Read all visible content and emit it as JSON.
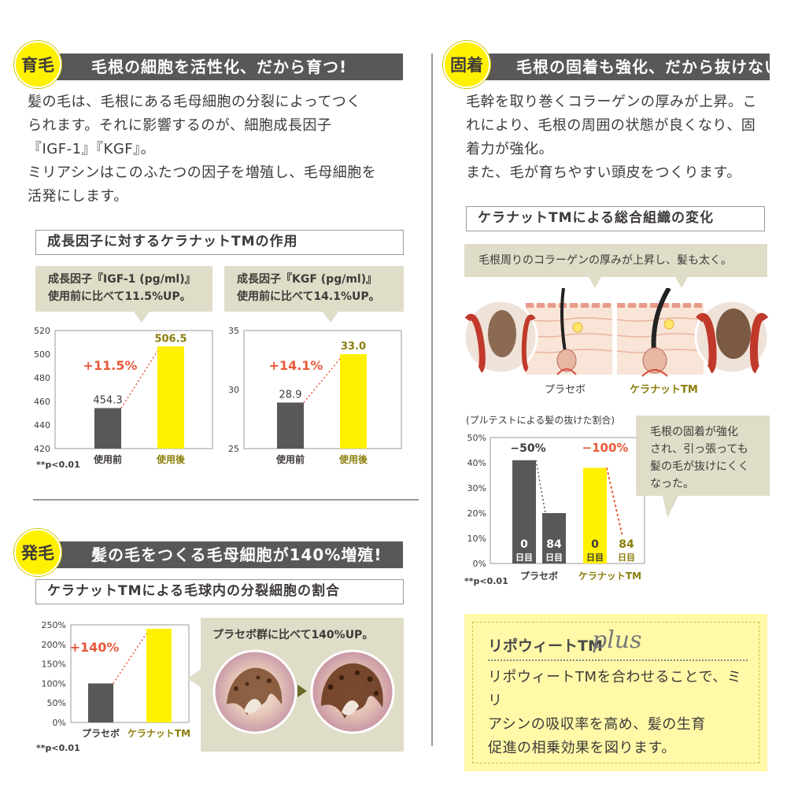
{
  "section_growth": {
    "badge": "育毛",
    "title": "毛根の細胞を活性化、だから育つ!",
    "body": "髪の毛は、毛根にある毛母細胞の分裂によってつく\nられます。それに影響するのが、細胞成長因子\n『IGF-1』『KGF』。\nミリアシンはこのふたつの因子を増殖し、毛母細胞を\n活発にします。",
    "subheader": "成長因子に対するケラナットTMの作用",
    "note": "**p<0.01"
  },
  "section_fix": {
    "badge": "固着",
    "title": "毛根の固着も強化、だから抜けない!",
    "body": "毛幹を取り巻くコラーゲンの厚みが上昇。こ\nれにより、毛根の周囲の状態が良くなり、固\n着力が強化。\nまた、毛が育ちやすい頭皮をつくります。",
    "subheader": "ケラナットTMによる総合組織の変化",
    "callout": "毛根周りのコラーゲンの厚みが上昇し、髪も太く。",
    "illus_label_placebo": "プラセボ",
    "illus_label_kera": "ケラナットTM",
    "pull_callout": "毛根の固着が強化\nされ、引っ張っても\n髪の毛が抜けにくく\nなった。",
    "note": "**p<0.01"
  },
  "section_hair": {
    "badge": "発毛",
    "title": "髪の毛をつくる毛母細胞が140%増殖!",
    "subheader": "ケラナットTMによる毛球内の分裂細胞の割合",
    "callout": "プラセボ群に比べて140%UP。",
    "note": "**p<0.01"
  },
  "plus_box": {
    "title_main": "リポウィートTM",
    "title_script": "plus",
    "body": "リポウィートTMを合わせることで、ミリ\nアシンの吸収率を高め、髪の生育\n促進の相乗効果を図ります。"
  },
  "colors": {
    "dark_bar": "#595757",
    "yellow_bar": "#fff100",
    "accent_red": "#e85a3a",
    "olive_text": "#8a7e0a"
  },
  "chart_data": [
    {
      "type": "bar",
      "callout": "成長因子『IGF-1 (pg/ml)』\n使用前に比べて11.5%UP。",
      "categories": [
        "使用前",
        "使用後"
      ],
      "values": [
        454.3,
        506.5
      ],
      "value_labels": [
        "454.3",
        "506.5"
      ],
      "ylim": [
        420,
        520
      ],
      "yticks": [
        "420",
        "440",
        "460",
        "480",
        "500",
        "520"
      ],
      "annotation": "+11.5%"
    },
    {
      "type": "bar",
      "callout": "成長因子『KGF (pg/ml)』\n使用前に比べて14.1%UP。",
      "categories": [
        "使用前",
        "使用後"
      ],
      "values": [
        28.9,
        33.0
      ],
      "value_labels": [
        "28.9",
        "33.0"
      ],
      "ylim": [
        25,
        35
      ],
      "yticks": [
        "25",
        "30",
        "35"
      ],
      "annotation": "+14.1%"
    },
    {
      "type": "bar",
      "title": "(プルテストによる髪の抜けた割合)",
      "groups": [
        "プラセボ",
        "ケラナットTM"
      ],
      "categories": [
        "0 日目",
        "84 日目",
        "0 日目",
        "84 日目"
      ],
      "values": [
        41,
        20,
        38,
        0
      ],
      "ylim": [
        0,
        50
      ],
      "yticks": [
        "0%",
        "10%",
        "20%",
        "30%",
        "40%",
        "50%"
      ],
      "annotations": [
        "−50%",
        "−100%"
      ]
    },
    {
      "type": "bar",
      "categories": [
        "プラセボ",
        "ケラナットTM"
      ],
      "values": [
        100,
        240
      ],
      "ylim": [
        0,
        250
      ],
      "yticks": [
        "0%",
        "50%",
        "100%",
        "150%",
        "200%",
        "250%"
      ],
      "annotation": "+140%"
    }
  ]
}
